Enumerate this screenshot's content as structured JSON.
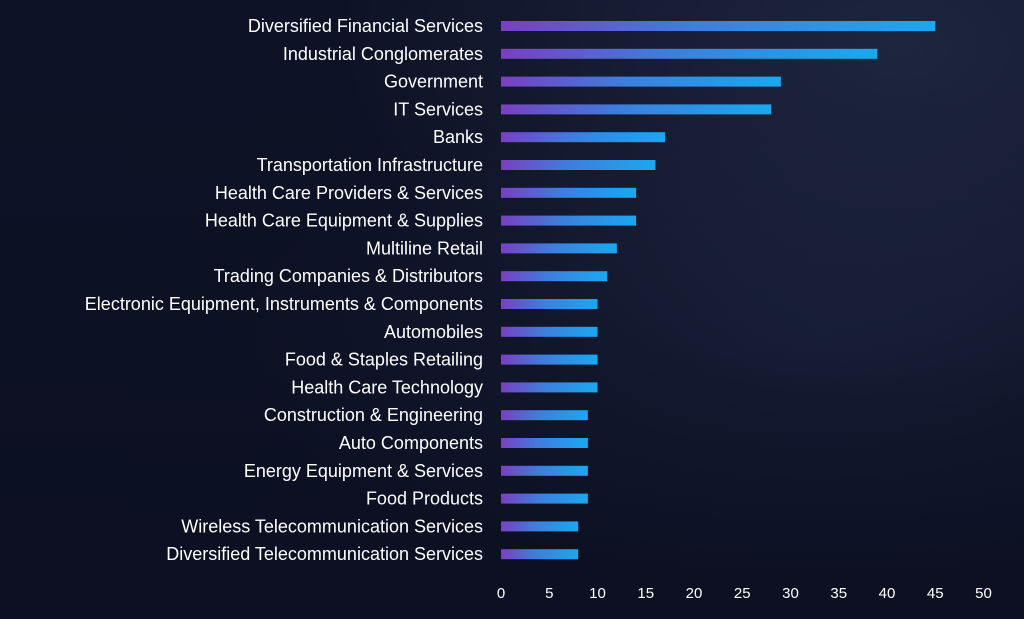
{
  "chart_data": {
    "type": "bar",
    "orientation": "horizontal",
    "title": "",
    "xlabel": "",
    "ylabel": "",
    "xlim": [
      0,
      50
    ],
    "x_ticks": [
      0,
      5,
      10,
      15,
      20,
      25,
      30,
      35,
      40,
      45,
      50
    ],
    "grid": false,
    "categories": [
      "Diversified Financial Services",
      "Industrial Conglomerates",
      "Government",
      "IT Services",
      "Banks",
      "Transportation Infrastructure",
      "Health Care Providers & Services",
      "Health Care Equipment & Supplies",
      "Multiline Retail",
      "Trading Companies & Distributors",
      "Electronic Equipment, Instruments & Components",
      "Automobiles",
      "Food & Staples Retailing",
      "Health Care Technology",
      "Construction & Engineering",
      "Auto Components",
      "Energy Equipment & Services",
      "Food Products",
      "Wireless Telecommunication Services",
      "Diversified Telecommunication Services"
    ],
    "values": [
      45,
      39,
      29,
      28,
      17,
      16,
      14,
      14,
      12,
      11,
      10,
      10,
      10,
      10,
      9,
      9,
      9,
      9,
      8,
      8
    ],
    "bar_gradient": [
      "#7a3fc2",
      "#1aa8f0"
    ],
    "text_color": "#ffffff",
    "background_color": "#0d1124"
  }
}
